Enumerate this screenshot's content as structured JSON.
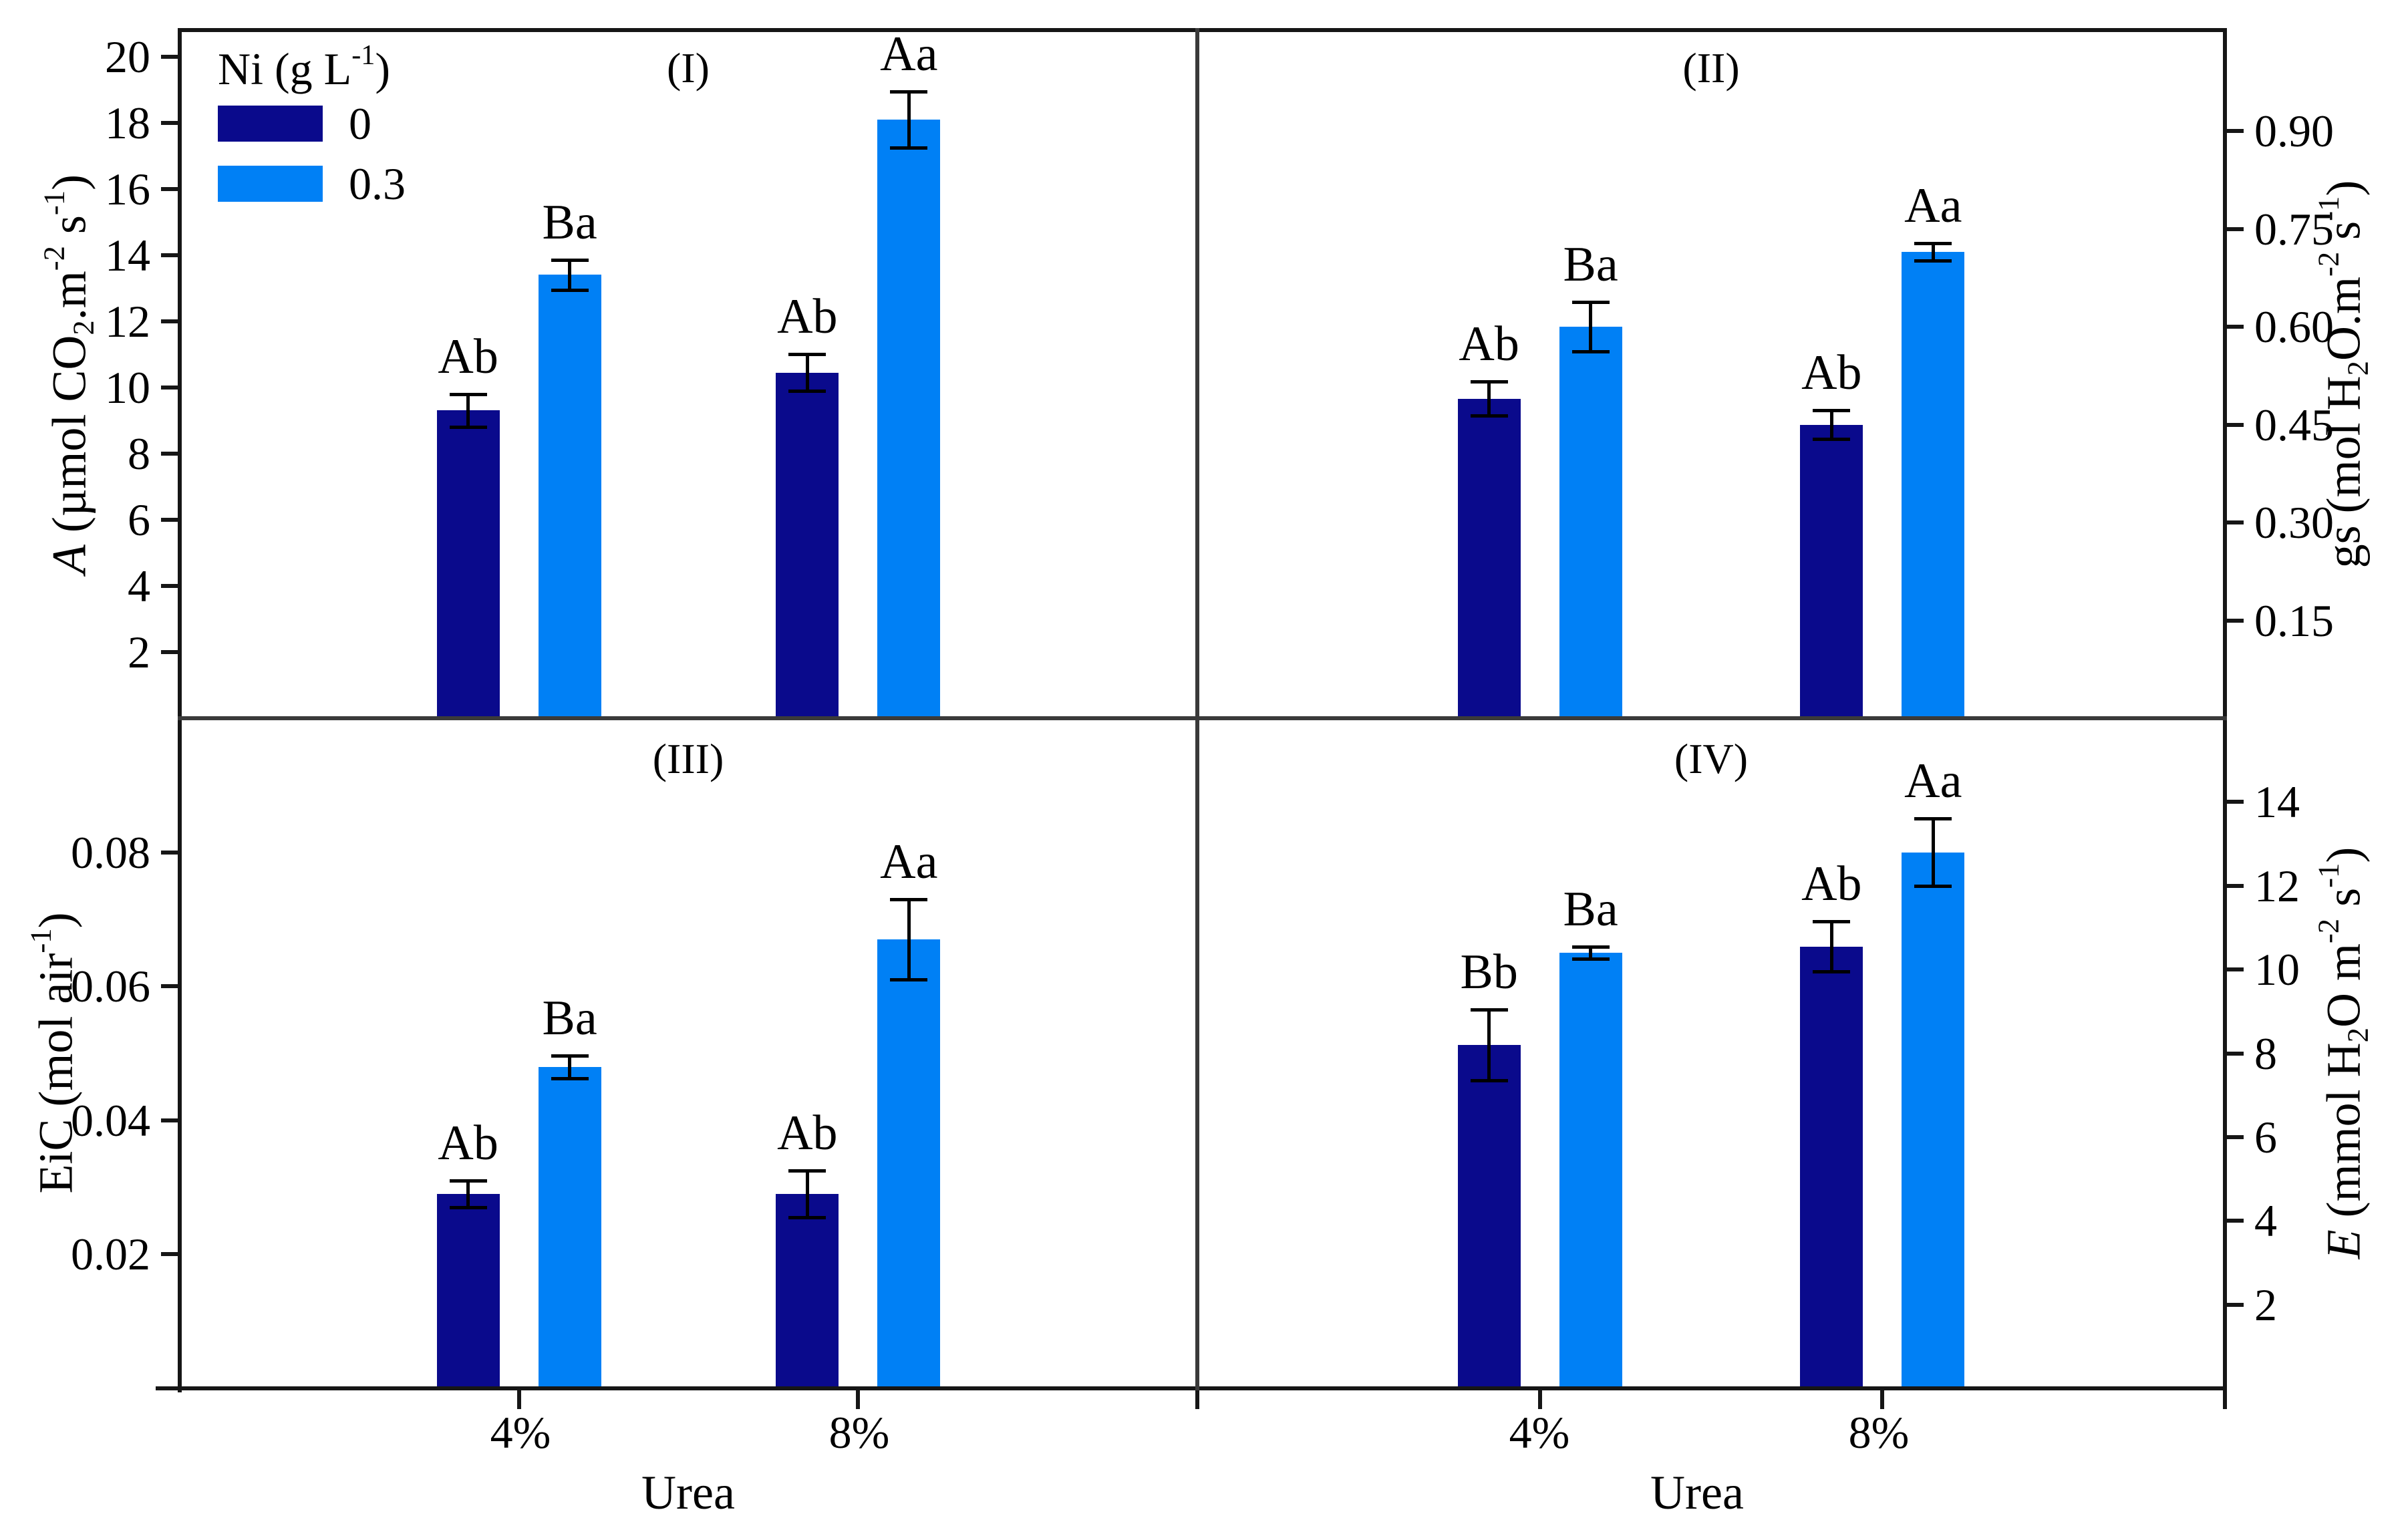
{
  "figure": {
    "description": "Four-panel bar chart of leaf gas-exchange parameters under urea (4%, 8%) and nickel (0, 0.3 g L-1) treatments, with standard-error bars and significance letters",
    "legend": {
      "title_segments": [
        {
          "t": "Ni (g L"
        },
        {
          "t": "-1",
          "sup": true
        },
        {
          "t": ")"
        }
      ],
      "items": [
        {
          "label": "0",
          "color": "#0a0a8c"
        },
        {
          "label": "0.3",
          "color": "#0080f5"
        }
      ]
    },
    "colors": {
      "ni0": "#0a0a8c",
      "ni03": "#0080f5",
      "axis": "#161616",
      "error_bars": "#000000"
    }
  },
  "chart_data": [
    {
      "type": "bar",
      "panel": "(I)",
      "legend_title": "Ni (g L-1)",
      "legend_position": "top-left",
      "ylabel": "A (umol CO2.m-2 s-1)",
      "ylabel_segments": [
        {
          "t": "A",
          "i": true
        },
        {
          "t": " (µmol CO"
        },
        {
          "t": "2",
          "sub": true
        },
        {
          "t": ".m"
        },
        {
          "t": "-2",
          "sup": true
        },
        {
          "t": " s"
        },
        {
          "t": "-1",
          "sup": true
        },
        {
          "t": ")"
        }
      ],
      "axis_side": "left",
      "ylim": [
        0,
        20.8
      ],
      "yticks": [
        2,
        4,
        6,
        8,
        10,
        12,
        14,
        16,
        18,
        20
      ],
      "ytick_decimals": 0,
      "categories": [
        "4%",
        "8%"
      ],
      "xlabel": "Urea",
      "series": [
        {
          "name": "0",
          "color": "#0a0a8c",
          "values": [
            9.3,
            10.45
          ],
          "errors": [
            0.5,
            0.55
          ],
          "sig": [
            "Ab",
            "Ab"
          ]
        },
        {
          "name": "0.3",
          "color": "#0080f5",
          "values": [
            13.4,
            18.1
          ],
          "errors": [
            0.45,
            0.85
          ],
          "sig": [
            "Ba",
            "Aa"
          ]
        }
      ]
    },
    {
      "type": "bar",
      "panel": "(II)",
      "ylabel": "gs (mol H2O.m-2 s-1)",
      "ylabel_segments": [
        {
          "t": "gs (mol H"
        },
        {
          "t": "2",
          "sub": true
        },
        {
          "t": "O.m"
        },
        {
          "t": "-2",
          "sup": true
        },
        {
          "t": " s"
        },
        {
          "t": "-1",
          "sup": true
        },
        {
          "t": ")"
        }
      ],
      "axis_side": "right",
      "ylim": [
        0,
        1.055
      ],
      "yticks": [
        0.15,
        0.3,
        0.45,
        0.6,
        0.75,
        0.9
      ],
      "ytick_decimals": 2,
      "categories": [
        "4%",
        "8%"
      ],
      "xlabel": "Urea",
      "series": [
        {
          "name": "0",
          "color": "#0a0a8c",
          "values": [
            0.49,
            0.45
          ],
          "errors": [
            0.026,
            0.022
          ],
          "sig": [
            "Ab",
            "Ab"
          ]
        },
        {
          "name": "0.3",
          "color": "#0080f5",
          "values": [
            0.6,
            0.715
          ],
          "errors": [
            0.038,
            0.013
          ],
          "sig": [
            "Ba",
            "Aa"
          ]
        }
      ]
    },
    {
      "type": "bar",
      "panel": "(III)",
      "ylabel": "EiC (mol air-1)",
      "ylabel_segments": [
        {
          "t": "EiC (mol air"
        },
        {
          "t": "-1",
          "sup": true
        },
        {
          "t": ")"
        }
      ],
      "axis_side": "left",
      "ylim": [
        0,
        0.1
      ],
      "yticks": [
        0.02,
        0.04,
        0.06,
        0.08
      ],
      "ytick_decimals": 2,
      "categories": [
        "4%",
        "8%"
      ],
      "xlabel": "Urea",
      "series": [
        {
          "name": "0",
          "color": "#0a0a8c",
          "values": [
            0.029,
            0.029
          ],
          "errors": [
            0.002,
            0.0035
          ],
          "sig": [
            "Ab",
            "Ab"
          ]
        },
        {
          "name": "0.3",
          "color": "#0080f5",
          "values": [
            0.048,
            0.067
          ],
          "errors": [
            0.0017,
            0.006
          ],
          "sig": [
            "Ba",
            "Aa"
          ]
        }
      ]
    },
    {
      "type": "bar",
      "panel": "(IV)",
      "ylabel": "E (mmol H2O m-2 s-1)",
      "ylabel_segments": [
        {
          "t": "E",
          "i": true
        },
        {
          "t": " (mmol H"
        },
        {
          "t": "2",
          "sub": true
        },
        {
          "t": "O m"
        },
        {
          "t": "-2",
          "sup": true
        },
        {
          "t": " s"
        },
        {
          "t": "-1",
          "sup": true
        },
        {
          "t": ")"
        }
      ],
      "axis_side": "right",
      "ylim": [
        0,
        16
      ],
      "yticks": [
        2,
        4,
        6,
        8,
        10,
        12,
        14
      ],
      "ytick_decimals": 0,
      "categories": [
        "4%",
        "8%"
      ],
      "xlabel": "Urea",
      "series": [
        {
          "name": "0",
          "color": "#0a0a8c",
          "values": [
            8.2,
            10.55
          ],
          "errors": [
            0.85,
            0.6
          ],
          "sig": [
            "Bb",
            "Ab"
          ]
        },
        {
          "name": "0.3",
          "color": "#0080f5",
          "values": [
            10.4,
            12.8
          ],
          "errors": [
            0.15,
            0.8
          ],
          "sig": [
            "Ba",
            "Aa"
          ]
        }
      ]
    }
  ]
}
